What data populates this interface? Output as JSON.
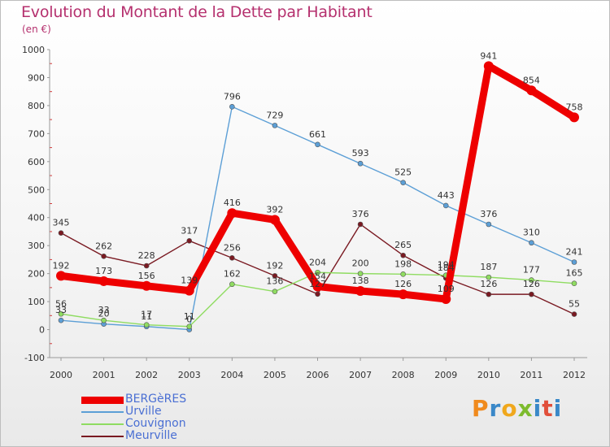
{
  "title": "Evolution du Montant de la Dette par Habitant",
  "subtitle": "(en €)",
  "logo": "Proxiti",
  "chart_data": {
    "type": "line",
    "title": "Evolution du Montant de la Dette par Habitant",
    "subtitle": "(en €)",
    "xlabel": "",
    "ylabel": "",
    "x": [
      "2000",
      "2001",
      "2002",
      "2003",
      "2004",
      "2005",
      "2006",
      "2007",
      "2008",
      "2009",
      "2010",
      "2011",
      "2012"
    ],
    "ylim": [
      -100,
      1000
    ],
    "yticks": [
      -100,
      0,
      100,
      200,
      300,
      400,
      500,
      600,
      700,
      800,
      900,
      1000
    ],
    "grid": false,
    "legend_position": "bottom-left",
    "series": [
      {
        "name": "BERGèRES",
        "color": "#ee0000",
        "values": [
          192,
          173,
          156,
          139,
          416,
          392,
          154,
          138,
          126,
          109,
          941,
          854,
          758
        ]
      },
      {
        "name": "Urville",
        "color": "#5c9fd6",
        "values": [
          33,
          20,
          11,
          0,
          796,
          729,
          661,
          593,
          525,
          443,
          376,
          310,
          241
        ]
      },
      {
        "name": "Couvignon",
        "color": "#8fdc61",
        "values": [
          56,
          33,
          17,
          11,
          162,
          136,
          204,
          200,
          198,
          194,
          187,
          177,
          165
        ]
      },
      {
        "name": "Meurville",
        "color": "#7a1a22",
        "values": [
          345,
          262,
          228,
          317,
          256,
          192,
          127,
          376,
          265,
          184,
          126,
          126,
          55
        ]
      }
    ]
  }
}
